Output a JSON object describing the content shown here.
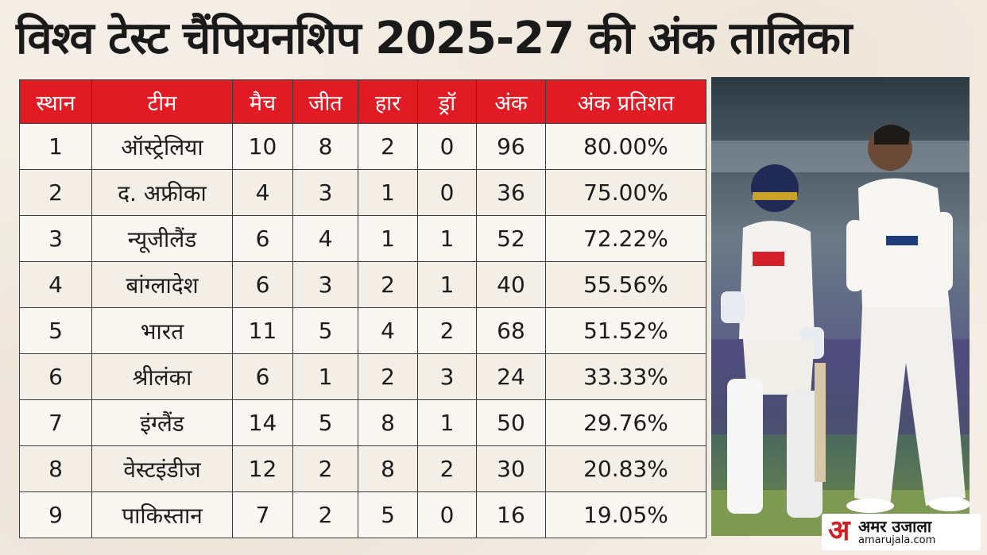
{
  "title": "विश्व टेस्ट चैंपियनशिप 2025-27 की अंक तालिका",
  "table": {
    "headers": [
      "स्थान",
      "टीम",
      "मैच",
      "जीत",
      "हार",
      "ड्रॉ",
      "अंक",
      "अंक प्रतिशत"
    ],
    "rows": [
      [
        "1",
        "ऑस्ट्रेलिया",
        "10",
        "8",
        "2",
        "0",
        "96",
        "80.00%"
      ],
      [
        "2",
        "द. अफ्रीका",
        "4",
        "3",
        "1",
        "0",
        "36",
        "75.00%"
      ],
      [
        "3",
        "न्यूजीलैंड",
        "6",
        "4",
        "1",
        "1",
        "52",
        "72.22%"
      ],
      [
        "4",
        "बांग्लादेश",
        "6",
        "3",
        "2",
        "1",
        "40",
        "55.56%"
      ],
      [
        "5",
        "भारत",
        "11",
        "5",
        "4",
        "2",
        "68",
        "51.52%"
      ],
      [
        "6",
        "श्रीलंका",
        "6",
        "1",
        "2",
        "3",
        "24",
        "33.33%"
      ],
      [
        "7",
        "इंग्लैंड",
        "14",
        "5",
        "8",
        "1",
        "50",
        "29.76%"
      ],
      [
        "8",
        "वेस्टइंडीज",
        "12",
        "2",
        "8",
        "2",
        "30",
        "20.83%"
      ],
      [
        "9",
        "पाकिस्तान",
        "7",
        "2",
        "5",
        "0",
        "16",
        "19.05%"
      ]
    ]
  },
  "logo": {
    "mark": "अ",
    "name": "अमर उजाला",
    "site": "amarujala.com"
  },
  "colors": {
    "header_bg": "#e01b24",
    "header_text": "#ffffff",
    "border": "#3a3a3a",
    "brand_red": "#d41e25"
  },
  "icons": [
    "amar-ujala-logo-icon"
  ]
}
